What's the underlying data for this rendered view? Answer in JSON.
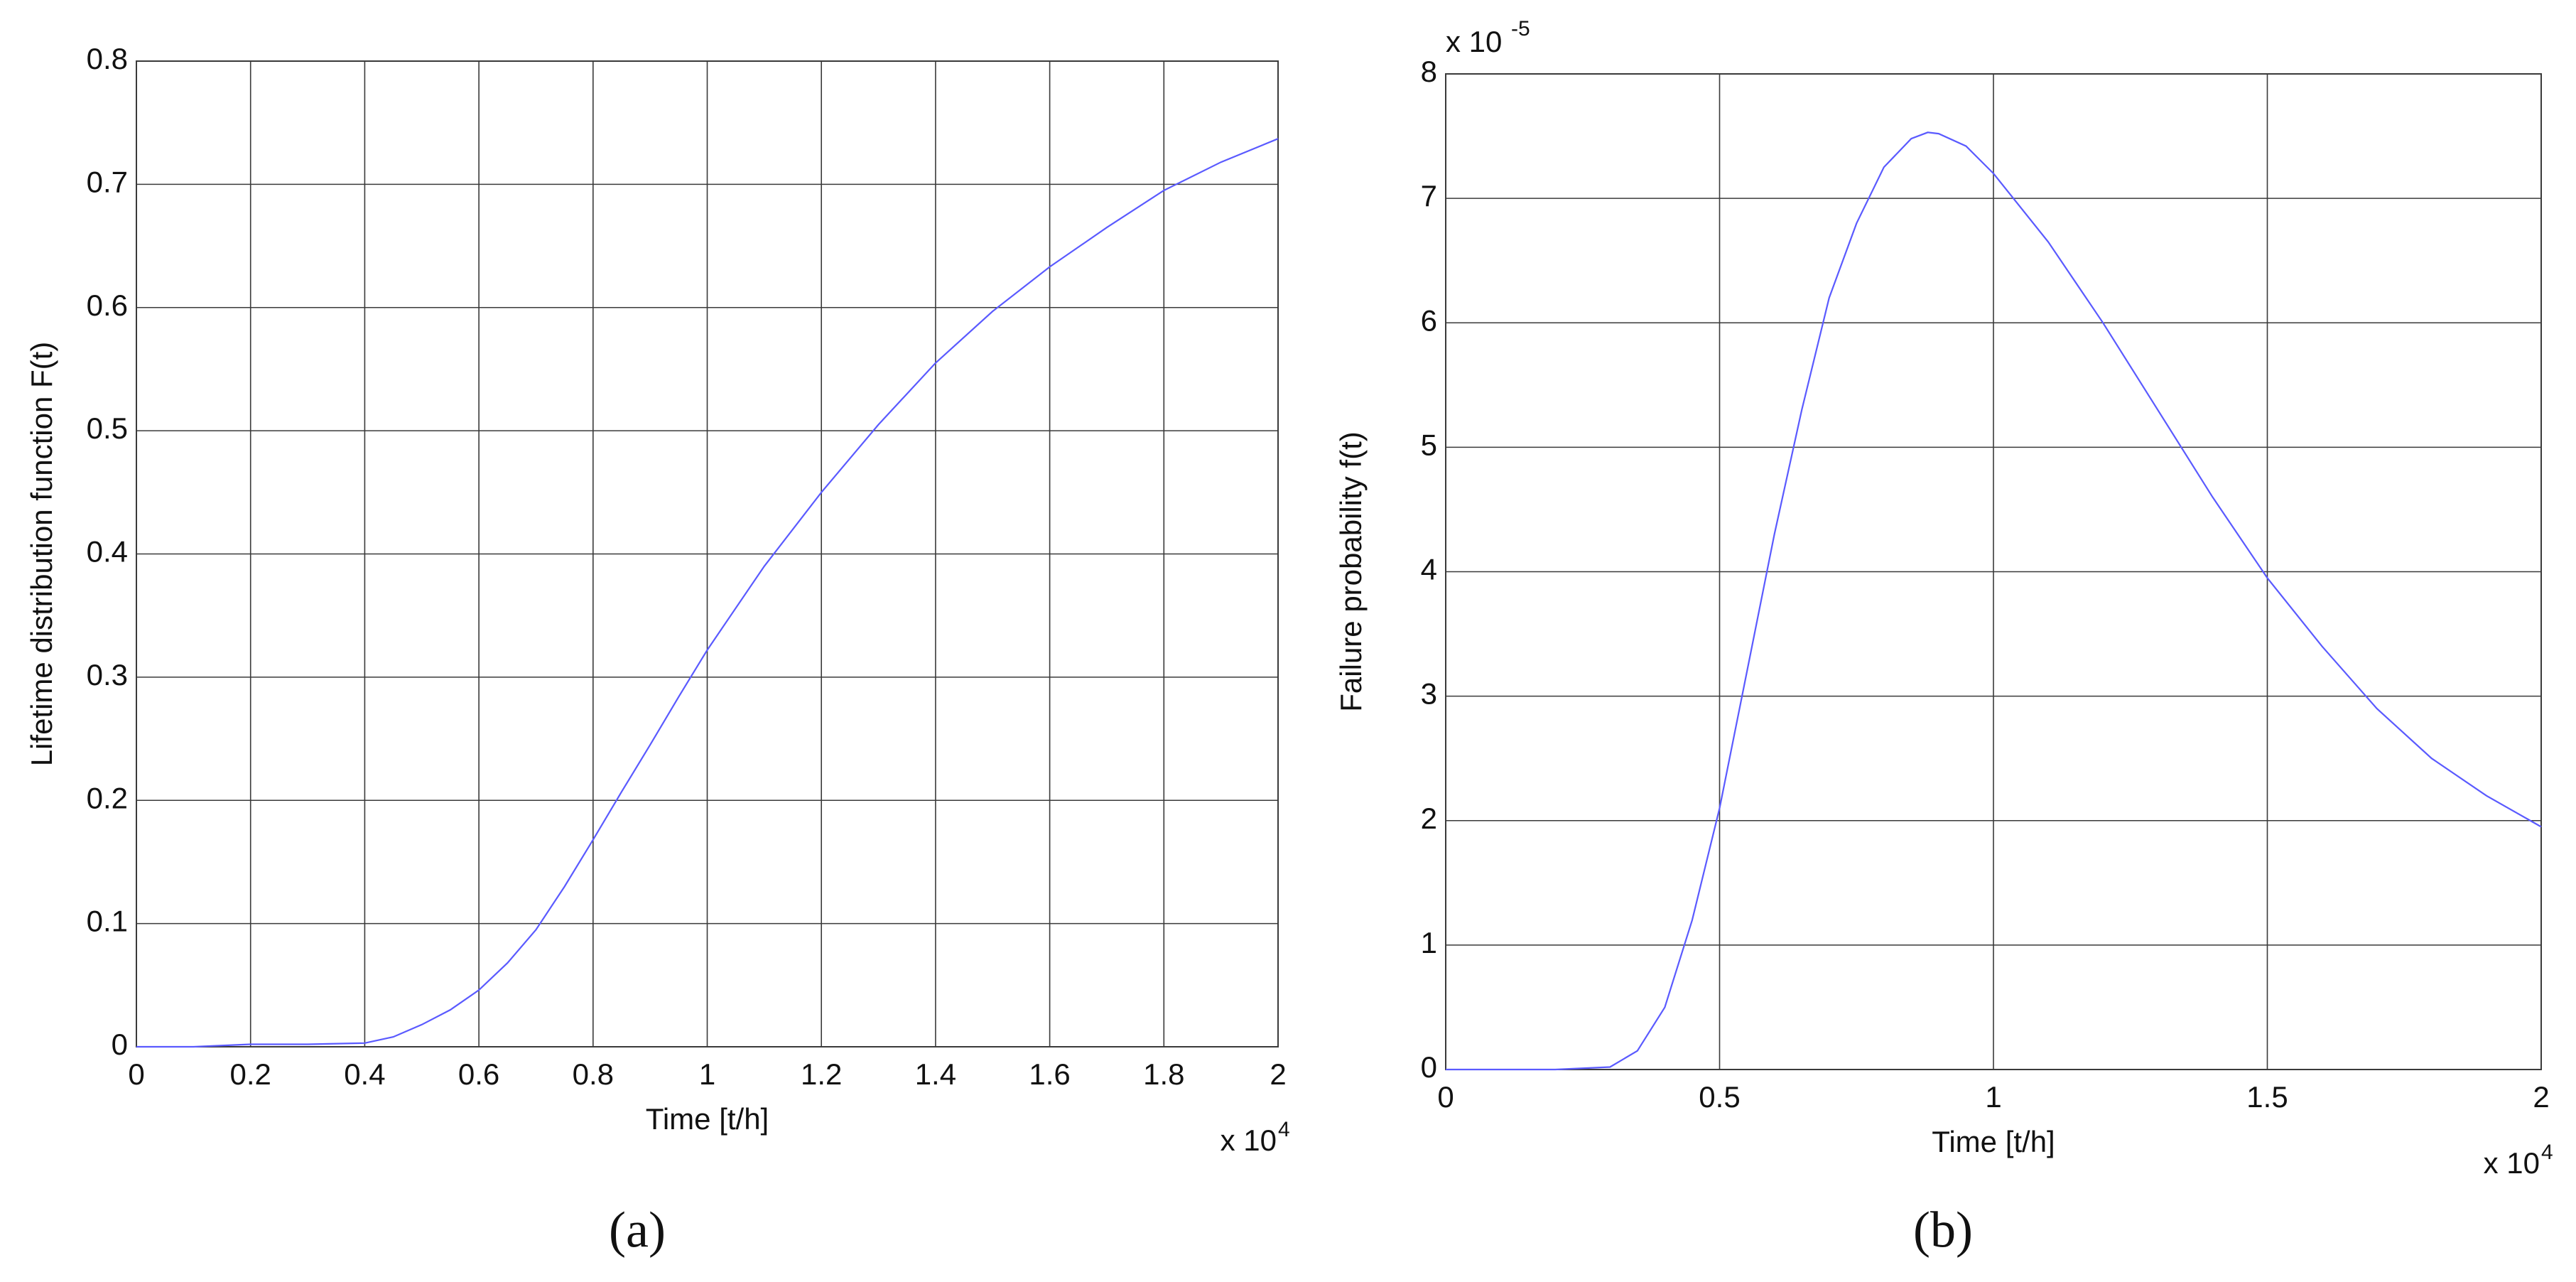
{
  "chart_data": [
    {
      "type": "line",
      "panel_label": "(a)",
      "xlabel": "Time [t/h]",
      "ylabel": "Lifetime distribution function F(t)",
      "x_multiplier": {
        "text": "x 10",
        "exponent": "4"
      },
      "x": [
        0,
        0.1,
        0.2,
        0.3,
        0.4,
        0.45,
        0.5,
        0.55,
        0.6,
        0.65,
        0.7,
        0.75,
        0.8,
        0.85,
        0.9,
        0.95,
        1.0,
        1.1,
        1.2,
        1.3,
        1.4,
        1.5,
        1.6,
        1.7,
        1.8,
        1.9,
        2.0
      ],
      "values": [
        0,
        0,
        0.002,
        0.002,
        0.003,
        0.008,
        0.018,
        0.03,
        0.046,
        0.068,
        0.095,
        0.13,
        0.168,
        0.207,
        0.245,
        0.284,
        0.322,
        0.39,
        0.45,
        0.505,
        0.555,
        0.597,
        0.633,
        0.665,
        0.695,
        0.718,
        0.737
      ],
      "color": "#5a5aff",
      "xlim": [
        0,
        2
      ],
      "xticks": [
        0,
        0.2,
        0.4,
        0.6,
        0.8,
        1,
        1.2,
        1.4,
        1.6,
        1.8,
        2
      ],
      "ylim": [
        0,
        0.8
      ],
      "yticks": [
        0,
        0.1,
        0.2,
        0.3,
        0.4,
        0.5,
        0.6,
        0.7,
        0.8
      ],
      "grid": true
    },
    {
      "type": "line",
      "panel_label": "(b)",
      "xlabel": "Time [t/h]",
      "ylabel": "Failure probability f(t)",
      "x_multiplier": {
        "text": "x 10",
        "exponent": "4"
      },
      "y_multiplier": {
        "text": "x 10",
        "exponent": "-5"
      },
      "x": [
        0,
        0.1,
        0.2,
        0.3,
        0.35,
        0.4,
        0.45,
        0.5,
        0.55,
        0.6,
        0.65,
        0.7,
        0.75,
        0.8,
        0.85,
        0.88,
        0.9,
        0.95,
        1.0,
        1.1,
        1.2,
        1.3,
        1.4,
        1.5,
        1.6,
        1.7,
        1.8,
        1.9,
        2.0
      ],
      "values": [
        0,
        0,
        0,
        0.02,
        0.15,
        0.5,
        1.2,
        2.1,
        3.2,
        4.3,
        5.3,
        6.2,
        6.8,
        7.25,
        7.48,
        7.53,
        7.52,
        7.42,
        7.2,
        6.65,
        6.0,
        5.3,
        4.6,
        3.95,
        3.4,
        2.9,
        2.5,
        2.2,
        1.95
      ],
      "color": "#5a5aff",
      "xlim": [
        0,
        2
      ],
      "xticks": [
        0,
        0.5,
        1,
        1.5,
        2
      ],
      "ylim": [
        0,
        8
      ],
      "yticks": [
        0,
        1,
        2,
        3,
        4,
        5,
        6,
        7,
        8
      ],
      "grid": true
    }
  ]
}
